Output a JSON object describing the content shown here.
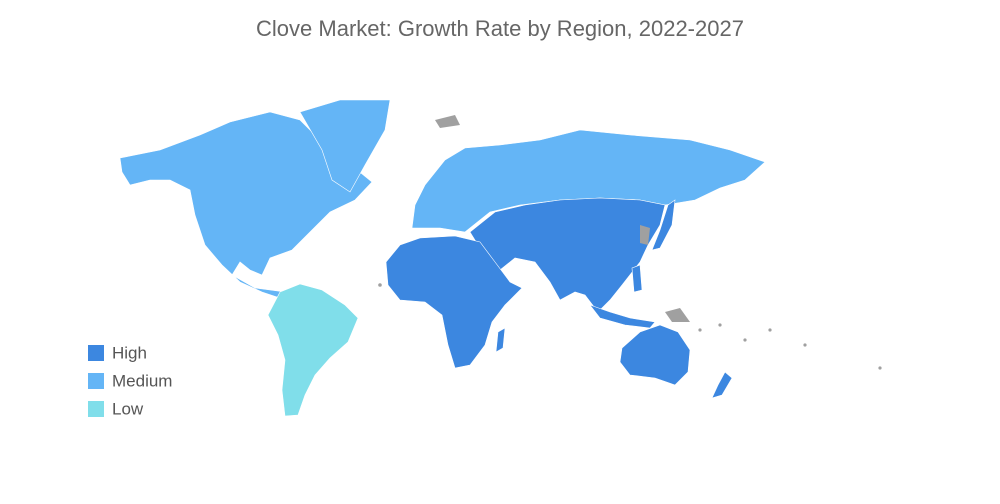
{
  "title": "Clove Market: Growth Rate by Region, 2022-2027",
  "legend": [
    {
      "label": "High",
      "color": "#3c87e0"
    },
    {
      "label": "Medium",
      "color": "#64b5f6"
    },
    {
      "label": "Low",
      "color": "#80deea"
    }
  ]
}
